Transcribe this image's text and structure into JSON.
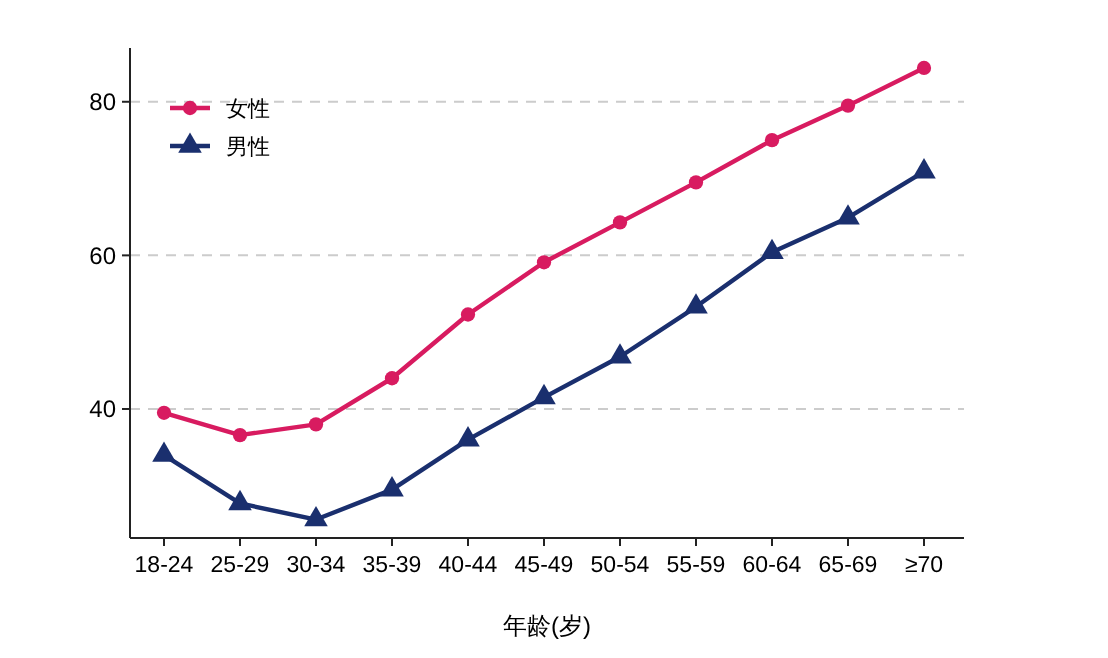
{
  "chart_data": {
    "type": "line",
    "xlabel": "年龄(岁)",
    "categories": [
      "18-24",
      "25-29",
      "30-34",
      "35-39",
      "40-44",
      "45-49",
      "50-54",
      "55-59",
      "60-64",
      "65-69",
      "≥70"
    ],
    "series": [
      {
        "name": "女性",
        "color": "#d81b60",
        "marker": "circle",
        "values": [
          39.5,
          36.6,
          38,
          44,
          52.3,
          59.1,
          64.3,
          69.5,
          75,
          79.5,
          84.4
        ]
      },
      {
        "name": "男性",
        "color": "#1a2f6e",
        "marker": "triangle",
        "values": [
          34,
          27.7,
          25.6,
          29.5,
          36,
          41.5,
          46.8,
          53.3,
          60.4,
          64.9,
          70.9
        ]
      }
    ],
    "ylim": [
      23.2,
      87
    ],
    "yticks": [
      40,
      60,
      80
    ],
    "grid": "y",
    "legend": "top left"
  }
}
